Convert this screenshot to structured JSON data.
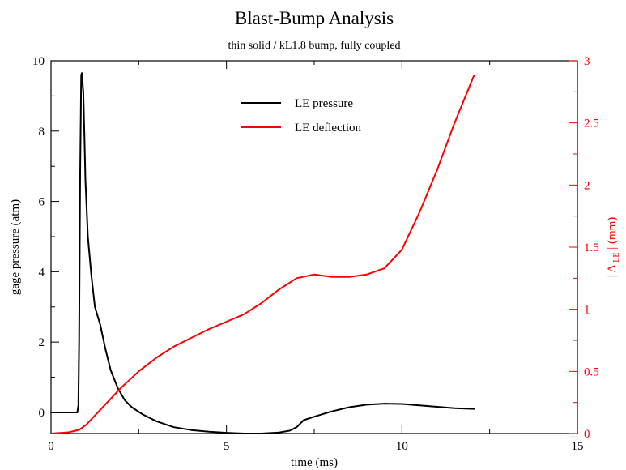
{
  "chart_data": {
    "type": "line",
    "title": "Blast-Bump Analysis",
    "subtitle": "thin solid / kL1.8 bump, fully coupled",
    "xlabel": "time (ms)",
    "ylabel": "gage pressure (atm)",
    "y2label": "| Δ LE | (mm)",
    "y2label_parts": {
      "left": "| Δ",
      "subscript": "LE",
      "right": "| (mm)"
    },
    "xlim": [
      0,
      15
    ],
    "ylim": [
      -0.6,
      10
    ],
    "y2lim": [
      0,
      3
    ],
    "x_ticks": [
      0,
      5,
      10,
      15
    ],
    "y_ticks": [
      0,
      2,
      4,
      6,
      8,
      10
    ],
    "y2_ticks": [
      0,
      0.5,
      1,
      1.5,
      2,
      2.5,
      3
    ],
    "x_tick_labels": [
      "0",
      "5",
      "10",
      "15"
    ],
    "y_tick_labels": [
      "0",
      "2",
      "4",
      "6",
      "8",
      "10"
    ],
    "y2_tick_labels": [
      "0",
      "0.5",
      "1",
      "1.5",
      "2",
      "2.5",
      "3"
    ],
    "grid": false,
    "legend_position": "top-center",
    "series": [
      {
        "name": "LE pressure",
        "axis": "left",
        "color": "#000000",
        "x": [
          0,
          0.75,
          0.78,
          0.8,
          0.83,
          0.86,
          0.88,
          0.92,
          0.95,
          0.98,
          1.05,
          1.15,
          1.25,
          1.4,
          1.55,
          1.7,
          1.9,
          2.1,
          2.3,
          2.6,
          3.0,
          3.5,
          4.0,
          4.5,
          5.0,
          5.5,
          6.0,
          6.5,
          6.8,
          7.0,
          7.2,
          7.5,
          8.0,
          8.5,
          9.0,
          9.5,
          10.0,
          10.5,
          11.0,
          11.5,
          12.05
        ],
        "y": [
          0,
          0,
          0.2,
          2.0,
          6.8,
          9.6,
          9.65,
          9.1,
          7.9,
          6.6,
          5.0,
          3.9,
          3.0,
          2.5,
          1.8,
          1.2,
          0.7,
          0.35,
          0.15,
          -0.05,
          -0.25,
          -0.42,
          -0.5,
          -0.55,
          -0.58,
          -0.6,
          -0.6,
          -0.57,
          -0.52,
          -0.42,
          -0.22,
          -0.12,
          0.03,
          0.15,
          0.22,
          0.25,
          0.24,
          0.2,
          0.16,
          0.12,
          0.1
        ]
      },
      {
        "name": "LE deflection",
        "axis": "right",
        "color": "#ff0000",
        "x": [
          0,
          0.5,
          0.8,
          1.0,
          1.2,
          1.5,
          2.0,
          2.5,
          3.0,
          3.5,
          4.0,
          4.5,
          5.0,
          5.5,
          6.0,
          6.5,
          7.0,
          7.5,
          8.0,
          8.5,
          9.0,
          9.5,
          10.0,
          10.5,
          11.0,
          11.5,
          12.05
        ],
        "y": [
          0,
          0.01,
          0.03,
          0.07,
          0.13,
          0.22,
          0.37,
          0.5,
          0.61,
          0.7,
          0.77,
          0.84,
          0.9,
          0.96,
          1.05,
          1.16,
          1.25,
          1.28,
          1.26,
          1.26,
          1.28,
          1.33,
          1.48,
          1.78,
          2.12,
          2.5,
          2.88
        ]
      }
    ]
  }
}
